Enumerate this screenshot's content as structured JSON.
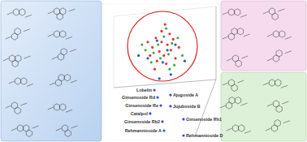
{
  "chart_data": {
    "type": "scatter",
    "tick_labels": false,
    "xlim": [
      0,
      100
    ],
    "ylim": [
      0,
      100
    ],
    "series": [
      {
        "color": "#e8322e",
        "marker": "circle",
        "x": [
          45,
          50,
          55,
          48,
          52,
          58,
          42,
          60,
          46,
          54,
          62,
          40,
          50,
          57,
          44,
          65,
          38,
          53
        ],
        "values": [
          75,
          72,
          70,
          65,
          62,
          66,
          68,
          74,
          58,
          56,
          60,
          62,
          80,
          78,
          52,
          68,
          72,
          85
        ]
      },
      {
        "color": "#3cb043",
        "marker": "circle",
        "x": [
          47,
          52,
          56,
          43,
          59,
          49,
          61,
          36,
          54,
          64,
          41,
          57,
          33,
          68
        ],
        "values": [
          70,
          76,
          63,
          64,
          71,
          60,
          55,
          66,
          82,
          75,
          57,
          52,
          70,
          62
        ]
      },
      {
        "color": "#3a4fc4",
        "marker": "circle",
        "x": [
          55,
          46,
          51,
          62,
          38,
          58,
          48,
          70,
          30,
          43.7,
          46.5,
          49.3,
          40.1,
          50.7,
          52.1,
          57.7,
          57.7,
          69,
          69
        ],
        "values": [
          66,
          73,
          57,
          70,
          60,
          48,
          45,
          58,
          62,
          36.5,
          31.1,
          25.1,
          19.2,
          13.2,
          6.6,
          32.9,
          24.6,
          15.0,
          3.0
        ],
        "labels": [
          null,
          null,
          null,
          null,
          null,
          null,
          null,
          null,
          null,
          "Lobelin",
          "Ginsenoside Rd",
          "Ginsenoside Re",
          "Catalpol",
          "Ginsenoside Rb2",
          "Rehmannioside A",
          "Ajugoside A",
          "Jujuboside B",
          "Ginsenoside Rh1",
          "Rehmannioside D"
        ]
      }
    ]
  }
}
